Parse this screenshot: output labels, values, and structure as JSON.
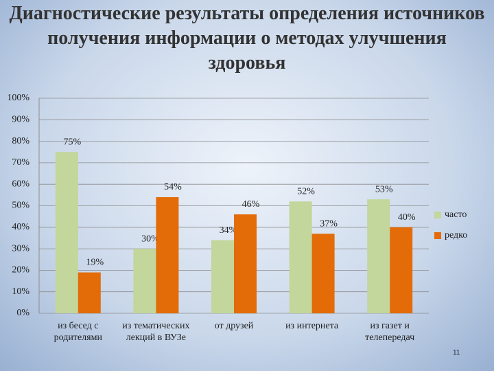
{
  "chart_data": {
    "type": "bar",
    "title": "Диагностические результаты определения источников получения информации о методах улучшения здоровья",
    "categories": [
      "из бесед с родителями",
      "из тематических лекций в ВУЗе",
      "от друзей",
      "из интернета",
      "из газет и телепередач"
    ],
    "series": [
      {
        "name": "часто",
        "color": "#c3d69b",
        "values": [
          75,
          30,
          34,
          52,
          53
        ],
        "value_labels": [
          "75%",
          "30%",
          "34%",
          "52%",
          "53%"
        ]
      },
      {
        "name": "редко",
        "color": "#e36c09",
        "values": [
          19,
          54,
          46,
          37,
          40
        ],
        "value_labels": [
          "19%",
          "54%",
          "46%",
          "37%",
          "40%"
        ]
      }
    ],
    "ylim": [
      0,
      100
    ],
    "yticks": [
      {
        "value": 0,
        "label": "0%"
      },
      {
        "value": 10,
        "label": "10%"
      },
      {
        "value": 20,
        "label": "20%"
      },
      {
        "value": 30,
        "label": "30%"
      },
      {
        "value": 40,
        "label": "40%"
      },
      {
        "value": 50,
        "label": "50%"
      },
      {
        "value": 60,
        "label": "60%"
      },
      {
        "value": 70,
        "label": "70%"
      },
      {
        "value": 80,
        "label": "80%"
      },
      {
        "value": 90,
        "label": "90%"
      },
      {
        "value": 100,
        "label": "100%"
      }
    ],
    "grid": true,
    "legend": "right"
  },
  "slide_number": "11"
}
